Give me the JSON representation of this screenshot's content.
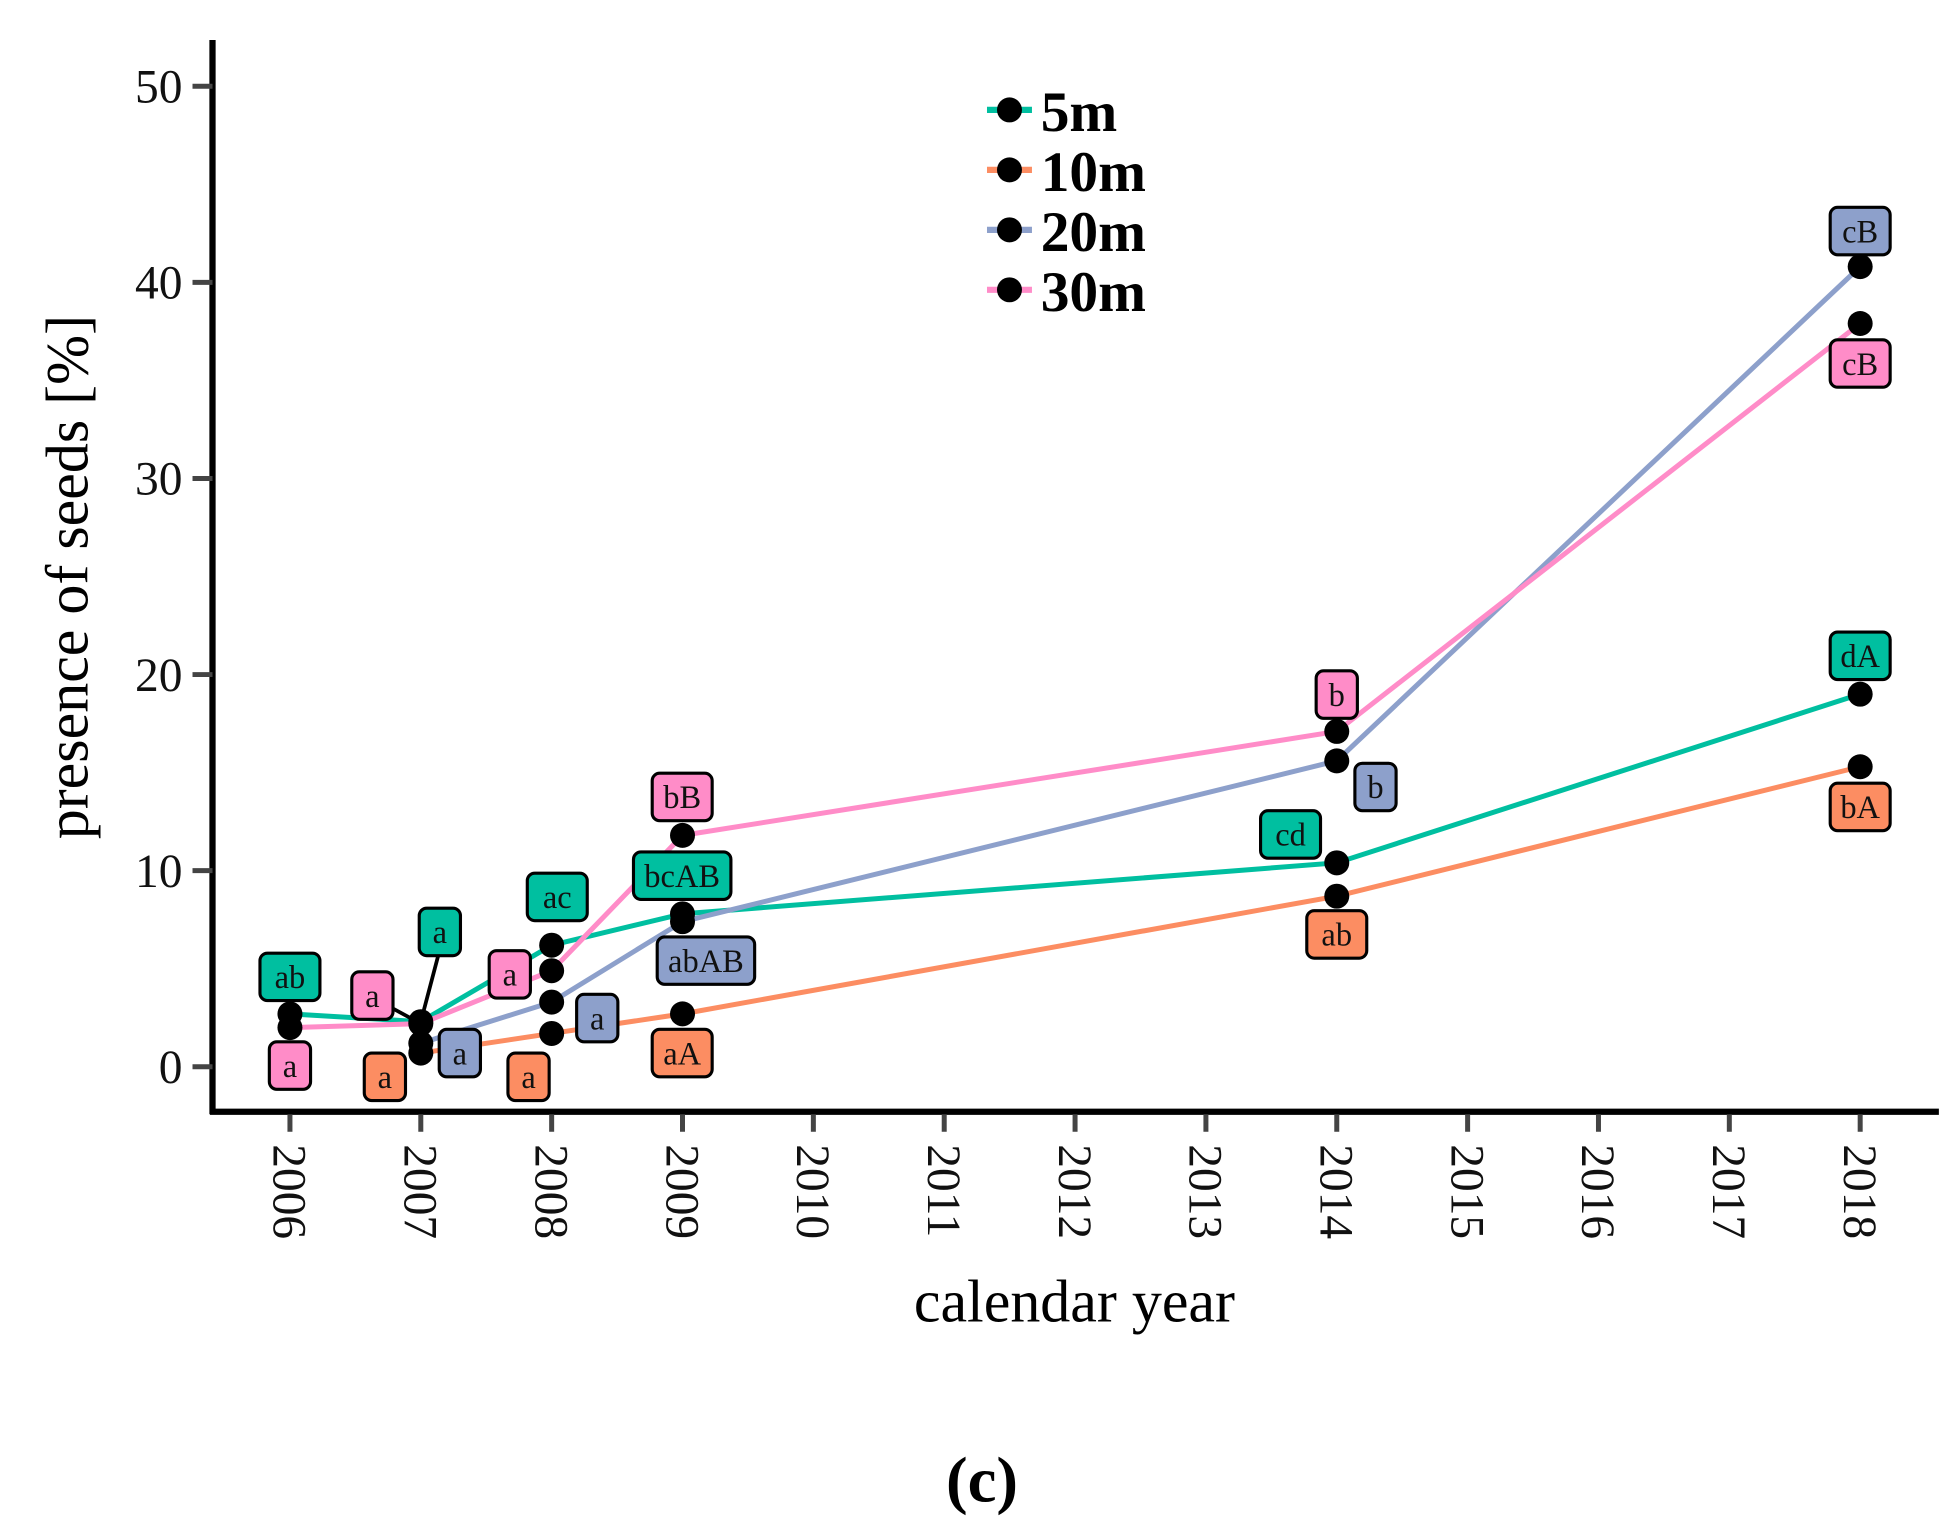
{
  "chart_data": {
    "type": "line",
    "title": "",
    "panel_label": "(c)",
    "xlabel": "calendar year",
    "ylabel": "presence of seeds [%]",
    "x_ticks": [
      "2006",
      "2007",
      "2008",
      "2009",
      "2010",
      "2011",
      "2012",
      "2013",
      "2014",
      "2015",
      "2016",
      "2017",
      "2018"
    ],
    "y_ticks": [
      "0",
      "10",
      "20",
      "30",
      "40",
      "50"
    ],
    "xlim": [
      2005.4,
      2018.6
    ],
    "ylim": [
      -2.3,
      52.3
    ],
    "legend_position": "top-center",
    "series": [
      {
        "name": "5m",
        "color": "#00BFA0",
        "x": [
          2006,
          2007,
          2008,
          2009,
          2014,
          2018
        ],
        "y": [
          2.7,
          2.3,
          6.2,
          7.8,
          10.4,
          19.0
        ],
        "labels": [
          "ab",
          "a",
          "ac",
          "bcAB",
          "cd",
          "dA"
        ]
      },
      {
        "name": "10m",
        "color": "#FC8D62",
        "x": [
          2007,
          2008,
          2009,
          2014,
          2018
        ],
        "y": [
          0.7,
          1.7,
          2.7,
          8.7,
          15.3
        ],
        "labels": [
          "a",
          "a",
          "aA",
          "ab",
          "bA"
        ]
      },
      {
        "name": "20m",
        "color": "#8DA0CB",
        "x": [
          2007,
          2008,
          2009,
          2014,
          2018
        ],
        "y": [
          1.2,
          3.3,
          7.4,
          15.6,
          40.8
        ],
        "labels": [
          "a",
          "a",
          "abAB",
          "b",
          "cB"
        ]
      },
      {
        "name": "30m",
        "color": "#FF8CC8",
        "x": [
          2006,
          2007,
          2008,
          2009,
          2014,
          2018
        ],
        "y": [
          2.0,
          2.2,
          4.9,
          11.8,
          17.1,
          37.9
        ],
        "labels": [
          "a",
          "a",
          "a",
          "bB",
          "b",
          "cB"
        ]
      }
    ]
  }
}
